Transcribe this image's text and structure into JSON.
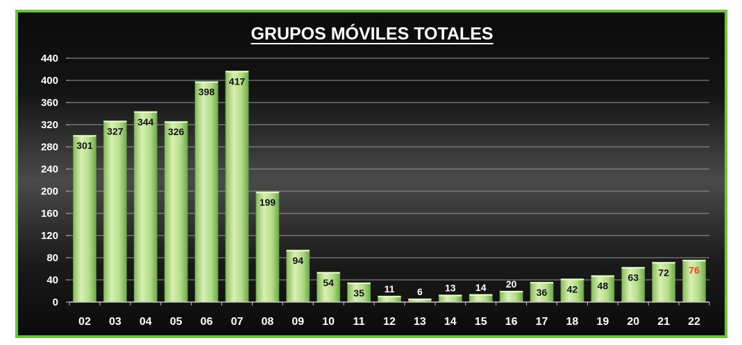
{
  "chart_data": {
    "type": "bar",
    "title": "GRUPOS MÓVILES TOTALES",
    "xlabel": "",
    "ylabel": "",
    "categories": [
      "02",
      "03",
      "04",
      "05",
      "06",
      "07",
      "08",
      "09",
      "10",
      "11",
      "12",
      "13",
      "14",
      "15",
      "16",
      "17",
      "18",
      "19",
      "20",
      "21",
      "22"
    ],
    "values": [
      301,
      327,
      344,
      326,
      398,
      417,
      199,
      94,
      54,
      35,
      11,
      6,
      13,
      14,
      20,
      36,
      42,
      48,
      63,
      72,
      76
    ],
    "ylim": [
      0,
      440
    ],
    "yticks": [
      0,
      40,
      80,
      120,
      160,
      200,
      240,
      280,
      320,
      360,
      400,
      440
    ],
    "grid": true,
    "legend": "none",
    "highlight_index": 20
  },
  "colors": {
    "frame_border": "#6fc23c",
    "bar_light": "#d9f0b2",
    "bar_mid": "#a5d47a",
    "bar_dark": "#6fa84a",
    "grid": "#9a9a9a",
    "axis_text": "#ffffff",
    "label_inside": "#111111",
    "label_outside": "#ffffff",
    "label_highlight": "#e8431d"
  }
}
